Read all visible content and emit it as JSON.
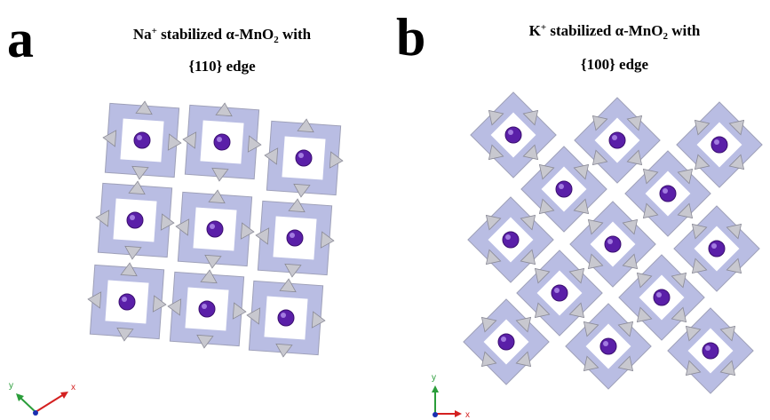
{
  "panels": [
    {
      "label": "a",
      "title": {
        "ion": "Na",
        "charge": "+",
        "text": " stabilized α-MnO",
        "subscript": "2",
        "tail": " with",
        "line2": "{110} edge"
      },
      "axes": {
        "y": "y",
        "x": "x"
      }
    },
    {
      "label": "b",
      "title": {
        "ion": "K",
        "charge": "+",
        "text": " stabilized α-MnO",
        "subscript": "2",
        "tail": " with",
        "line2": "{100} edge"
      },
      "axes": {
        "y": "y",
        "x": "x"
      }
    }
  ]
}
